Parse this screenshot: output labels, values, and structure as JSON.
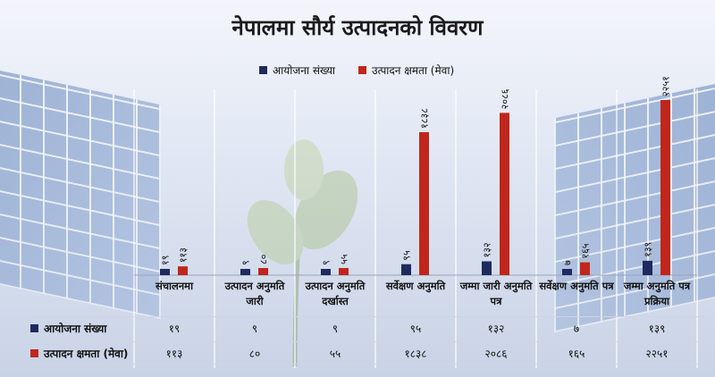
{
  "title": "नेपालमा सौर्य उत्पादनको विवरण",
  "colors": {
    "series1": "#1f2a5e",
    "series2": "#c0261c"
  },
  "chart_data": {
    "type": "bar",
    "title": "नेपालमा सौर्य उत्पादनको विवरण",
    "categories": [
      "संचालनमा",
      "उत्पादन अनुमति जारी",
      "उत्पादन अनुमति दर्खास्त",
      "सर्वेक्षण अनुमति",
      "जम्मा जारी अनुमति पत्र",
      "सर्वेक्षण अनुमति पत्र",
      "जम्मा अनुमति पत्र प्रक्रिया"
    ],
    "series": [
      {
        "name": "आयोजना संख्या",
        "values": [
          19,
          9,
          9,
          95,
          132,
          7,
          139
        ],
        "labels": [
          "१९",
          "९",
          "९",
          "९५",
          "१३२",
          "७",
          "१३९"
        ]
      },
      {
        "name": "उत्पादन क्षमता (मेवा)",
        "values": [
          113,
          80,
          55,
          1838,
          2086,
          165,
          2251
        ],
        "labels": [
          "११३",
          "८०",
          "५५",
          "१८३८",
          "२०८६",
          "१६५",
          "२२५१"
        ]
      }
    ],
    "ylim": [
      0,
      2251
    ],
    "legend": "top-center",
    "grid": false
  }
}
